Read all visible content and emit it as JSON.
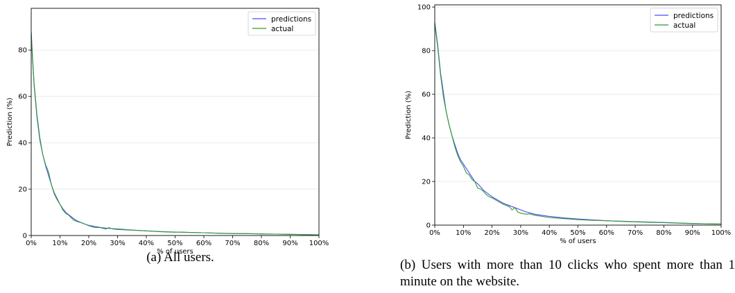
{
  "chart_data": [
    {
      "type": "line",
      "caption": "(a) All users.",
      "xlabel": "% of users",
      "ylabel": "Prediction (%)",
      "xlim": [
        0,
        100
      ],
      "ylim": [
        0,
        98
      ],
      "xticks": [
        "0%",
        "10%",
        "20%",
        "30%",
        "40%",
        "50%",
        "60%",
        "70%",
        "80%",
        "90%",
        "100%"
      ],
      "yticks": [
        0,
        20,
        40,
        60,
        80
      ],
      "grid": "horizontal",
      "legend": "top-right",
      "series": [
        {
          "name": "predictions",
          "color": "#4a4aff",
          "x": [
            0,
            0.5,
            1,
            2,
            3,
            4,
            5,
            6,
            7,
            8,
            9,
            10,
            11,
            12,
            13,
            14,
            15,
            16,
            18,
            20,
            22,
            24,
            26,
            28,
            30,
            35,
            40,
            45,
            50,
            55,
            60,
            65,
            70,
            75,
            80,
            85,
            90,
            95,
            100
          ],
          "y": [
            88,
            76,
            66,
            52,
            42,
            35,
            30,
            26,
            22,
            18,
            15.5,
            13.5,
            11.5,
            10,
            9,
            8,
            7,
            6.3,
            5.2,
            4.4,
            3.9,
            3.5,
            3.2,
            3,
            2.8,
            2.4,
            2,
            1.7,
            1.5,
            1.3,
            1.2,
            1,
            0.9,
            0.8,
            0.7,
            0.6,
            0.5,
            0.4,
            0.3
          ]
        },
        {
          "name": "actual",
          "color": "#2e9a2e",
          "x": [
            0,
            0.5,
            1,
            2,
            3,
            4,
            5,
            6,
            7,
            8,
            9,
            10,
            11,
            12,
            13,
            14,
            15,
            16,
            18,
            20,
            22,
            24,
            26,
            27,
            28,
            30,
            35,
            40,
            45,
            50,
            52,
            55,
            60,
            65,
            70,
            75,
            80,
            85,
            90,
            95,
            100
          ],
          "y": [
            87,
            75,
            65,
            51,
            41,
            35,
            30.5,
            27.5,
            22,
            18.5,
            16,
            13.5,
            11,
            9.5,
            8.8,
            7.5,
            6.5,
            6,
            5.3,
            4.2,
            3.5,
            3.4,
            2.8,
            3.4,
            2.9,
            2.6,
            2.3,
            2,
            1.6,
            1.4,
            1.5,
            1.3,
            1.2,
            1,
            0.8,
            0.8,
            0.7,
            0.6,
            0.5,
            0.4,
            0.3
          ]
        }
      ]
    },
    {
      "type": "line",
      "caption": "(b) Users with more than 10 clicks who spent more than 1 minute on the website.",
      "xlabel": "% of users",
      "ylabel": "Prediction (%)",
      "xlim": [
        0,
        100
      ],
      "ylim": [
        0,
        101
      ],
      "xticks": [
        "0%",
        "10%",
        "20%",
        "30%",
        "40%",
        "50%",
        "60%",
        "70%",
        "80%",
        "90%",
        "100%"
      ],
      "yticks": [
        0,
        20,
        40,
        60,
        80,
        100
      ],
      "grid": "horizontal",
      "legend": "top-right",
      "series": [
        {
          "name": "predictions",
          "color": "#4a4aff",
          "x": [
            0,
            0.5,
            1,
            2,
            3,
            4,
            5,
            6,
            7,
            8,
            9,
            10,
            11,
            12,
            13,
            14,
            15,
            16,
            17,
            18,
            20,
            22,
            24,
            26,
            28,
            30,
            32,
            35,
            40,
            45,
            50,
            55,
            60,
            65,
            70,
            75,
            80,
            85,
            90,
            95,
            100
          ],
          "y": [
            93,
            88,
            83,
            70,
            61,
            52,
            46,
            41,
            37,
            33,
            30,
            28,
            26,
            24,
            22,
            20,
            19,
            17.5,
            16,
            15,
            13,
            11.5,
            10,
            9,
            8,
            7,
            6,
            5,
            4,
            3.3,
            2.8,
            2.4,
            2,
            1.8,
            1.6,
            1.4,
            1.2,
            1,
            0.8,
            0.6,
            0.5
          ]
        },
        {
          "name": "actual",
          "color": "#2e9a2e",
          "x": [
            0,
            0.5,
            1,
            2,
            3,
            4,
            5,
            6,
            7,
            8,
            9,
            10,
            11,
            12,
            13,
            14,
            15,
            16,
            17,
            18,
            19,
            20,
            22,
            24,
            26,
            27,
            28,
            29,
            30,
            32,
            33,
            35,
            40,
            45,
            50,
            55,
            60,
            65,
            70,
            75,
            80,
            85,
            90,
            95,
            100
          ],
          "y": [
            92,
            87,
            82,
            69,
            59,
            52,
            46,
            41,
            36,
            32,
            29,
            27,
            24,
            23,
            21,
            20,
            17,
            16.5,
            15.5,
            14,
            13,
            12.5,
            11,
            9.5,
            8.5,
            7,
            8,
            6,
            5.5,
            5,
            5.2,
            4.5,
            3.5,
            3,
            2.5,
            2.2,
            2,
            1.7,
            1.5,
            1.3,
            1.1,
            0.9,
            0.7,
            0.6,
            0.5
          ]
        }
      ]
    }
  ]
}
